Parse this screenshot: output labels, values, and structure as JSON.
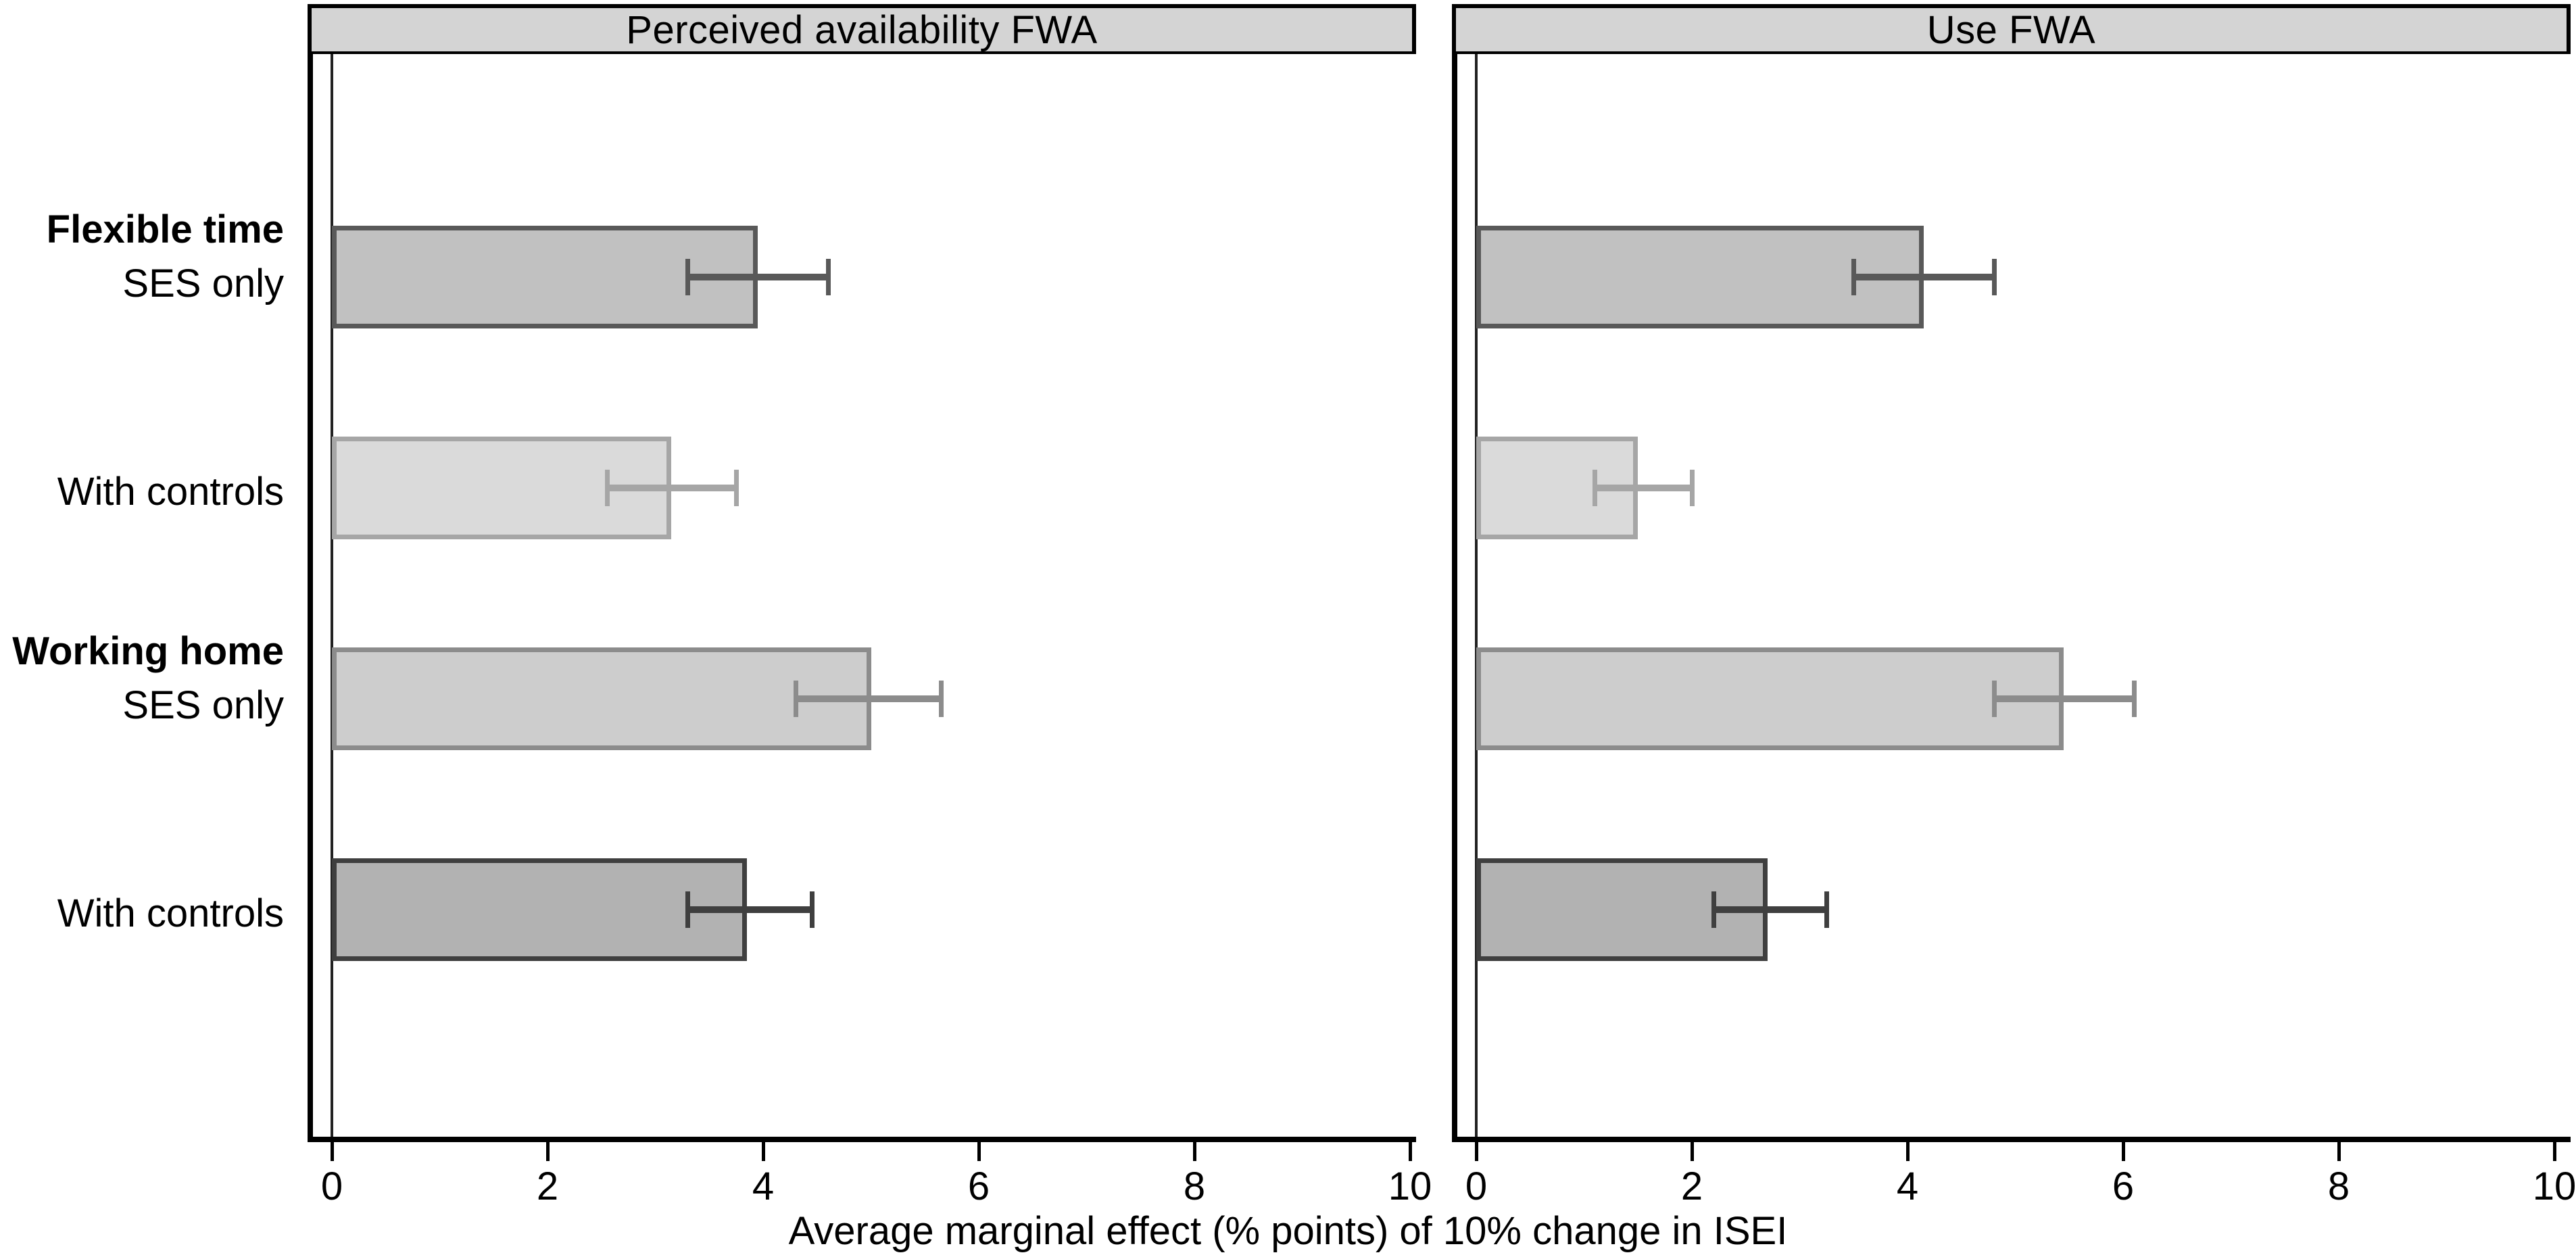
{
  "figure": {
    "xlabel": "Average marginal effect (% points) of 10% change in ISEI"
  },
  "chart_data": {
    "type": "bar",
    "orientation": "horizontal",
    "xlim": [
      0,
      10
    ],
    "x_ticks": [
      0,
      2,
      4,
      6,
      8,
      10
    ],
    "grid": false,
    "xlabel": "Average marginal effect (% points) of 10% change in ISEI",
    "categories": [
      {
        "group": "Flexible time",
        "model": "SES only"
      },
      {
        "group": "",
        "model": "With controls"
      },
      {
        "group": "Working home",
        "model": "SES only"
      },
      {
        "group": "",
        "model": "With controls"
      }
    ],
    "panels": [
      {
        "title": "Perceived availability FWA",
        "series": [
          {
            "category": "Flexible time - SES only",
            "value": 3.95,
            "ci_low": 3.3,
            "ci_high": 4.6
          },
          {
            "category": "Flexible time - With controls",
            "value": 3.15,
            "ci_low": 2.55,
            "ci_high": 3.75
          },
          {
            "category": "Working home - SES only",
            "value": 5.0,
            "ci_low": 4.3,
            "ci_high": 5.65
          },
          {
            "category": "Working home - With controls",
            "value": 3.85,
            "ci_low": 3.3,
            "ci_high": 4.45
          }
        ]
      },
      {
        "title": "Use FWA",
        "series": [
          {
            "category": "Flexible time - SES only",
            "value": 4.15,
            "ci_low": 3.5,
            "ci_high": 4.8
          },
          {
            "category": "Flexible time - With controls",
            "value": 1.5,
            "ci_low": 1.1,
            "ci_high": 2.0
          },
          {
            "category": "Working home - SES only",
            "value": 5.45,
            "ci_low": 4.8,
            "ci_high": 6.1
          },
          {
            "category": "Working home - With controls",
            "value": 2.7,
            "ci_low": 2.2,
            "ci_high": 3.25
          }
        ]
      }
    ],
    "bar_colors": [
      {
        "fill": "#c1c1c1",
        "stroke": "#595959"
      },
      {
        "fill": "#dadada",
        "stroke": "#a6a6a6"
      },
      {
        "fill": "#cdcdcd",
        "stroke": "#8c8c8c"
      },
      {
        "fill": "#b2b2b2",
        "stroke": "#3f3f3f"
      }
    ],
    "header_fill": "#d4d4d4",
    "zero_line_color": "#222222"
  }
}
